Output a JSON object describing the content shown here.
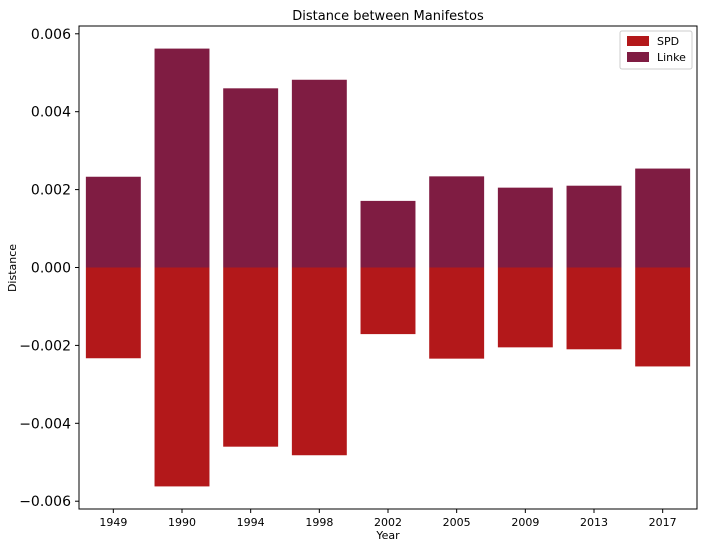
{
  "chart_data": {
    "type": "bar",
    "title": "Distance between Manifestos",
    "xlabel": "Year",
    "ylabel": "Distance",
    "categories": [
      "1949",
      "1990",
      "1994",
      "1998",
      "2002",
      "2005",
      "2009",
      "2013",
      "2017"
    ],
    "series": [
      {
        "name": "SPD",
        "color": "#b3181a",
        "values": [
          -0.00233,
          -0.00562,
          -0.0046,
          -0.00482,
          -0.00171,
          -0.00234,
          -0.00205,
          -0.0021,
          -0.00254
        ]
      },
      {
        "name": "Linke",
        "color": "#7f1c42",
        "values": [
          0.00233,
          0.00562,
          0.0046,
          0.00482,
          0.00171,
          0.00234,
          0.00205,
          0.0021,
          0.00254
        ]
      }
    ],
    "ylim": [
      -0.0062,
      0.0062
    ],
    "yticks": [
      -0.006,
      -0.004,
      -0.002,
      0.0,
      0.002,
      0.004,
      0.006
    ],
    "ytick_labels": [
      "−0.006",
      "−0.004",
      "−0.002",
      "0.000",
      "0.002",
      "0.004",
      "0.006"
    ],
    "legend_position": "top-right",
    "grid": false
  }
}
